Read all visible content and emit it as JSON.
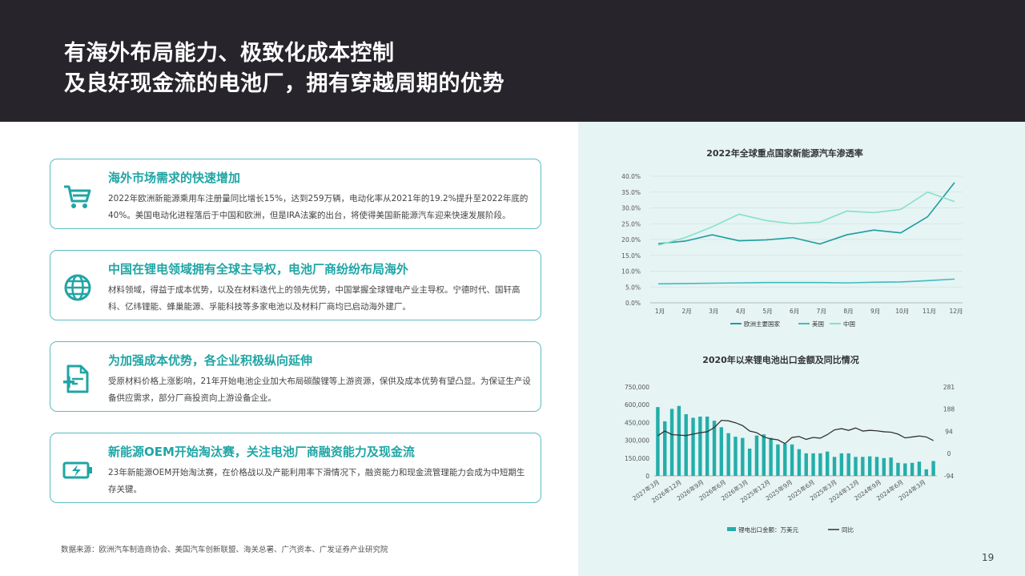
{
  "header": {
    "title_line1": "有海外布局能力、极致化成本控制",
    "title_line2": "及良好现金流的电池厂，拥有穿越周期的优势"
  },
  "cards": [
    {
      "icon": "shopping-cart-icon",
      "title": "海外市场需求的快速增加",
      "body": "2022年欧洲新能源乘用车注册量同比增长15%，达到259万辆，电动化率从2021年的19.2%提升至2022年底的40%。美国电动化进程落后于中国和欧洲，但是IRA法案的出台，将使得美国新能源汽车迎来快速发展阶段。"
    },
    {
      "icon": "globe-icon",
      "title": "中国在锂电领域拥有全球主导权，电池厂商纷纷布局海外",
      "body": "材料领域，得益于成本优势，以及在材料迭代上的领先优势，中国掌握全球锂电产业主导权。宁德时代、国轩高科、亿纬锂能、蜂巢能源、孚能科技等多家电池以及材料厂商均已启动海外建厂。"
    },
    {
      "icon": "document-add-icon",
      "title": "为加强成本优势，各企业积极纵向延伸",
      "body": "受原材料价格上涨影响，21年开始电池企业加大布局碳酸锂等上游资源，保供及成本优势有望凸显。为保证生产设备供应需求，部分厂商投资向上游设备企业。"
    },
    {
      "icon": "battery-charging-icon",
      "title": "新能源OEM开始淘汰赛，关注电池厂商融资能力及现金流",
      "body": "23年新能源OEM开始淘汰赛，在价格战以及产能利用率下滑情况下，融资能力和现金流管理能力会成为中短期生存关键。"
    }
  ],
  "footer": {
    "source": "数据来源：欧洲汽车制造商协会、美国汽车创新联盟、海关总署、广汽资本、广发证券产业研究院",
    "page_number": "19"
  },
  "colors": {
    "header_bg": "#27252b",
    "accent": "#20a5a5",
    "europe_line": "#1d9d9f",
    "usa_line": "#3fbcc0",
    "china_line": "#86e0cb",
    "bar": "#24aeaa",
    "yoy_line": "#333333"
  },
  "chart_data": [
    {
      "type": "line",
      "title": "2022年全球重点国家新能源汽车渗透率",
      "categories": [
        "1月",
        "2月",
        "3月",
        "4月",
        "5月",
        "6月",
        "7月",
        "8月",
        "9月",
        "10月",
        "11月",
        "12月"
      ],
      "y_ticks": [
        "0.0%",
        "5.0%",
        "10.0%",
        "15.0%",
        "20.0%",
        "25.0%",
        "30.0%",
        "35.0%",
        "40.0%"
      ],
      "ylim": [
        0,
        40
      ],
      "legend_position": "bottom",
      "grid": true,
      "series": [
        {
          "name": "欧洲主要国家",
          "values": [
            18.7,
            19.5,
            21.5,
            19.6,
            19.9,
            20.6,
            18.6,
            21.5,
            23.0,
            22.1,
            27.2,
            38.0
          ]
        },
        {
          "name": "美国",
          "values": [
            6.0,
            6.1,
            6.2,
            6.3,
            6.4,
            6.4,
            6.4,
            6.3,
            6.5,
            6.6,
            7.0,
            7.5
          ]
        },
        {
          "name": "中国",
          "values": [
            18.2,
            20.6,
            24.0,
            28.0,
            26.0,
            25.0,
            25.5,
            29.0,
            28.5,
            29.5,
            35.0,
            32.0
          ]
        }
      ]
    },
    {
      "type": "bar",
      "title": "2020年以来锂电池出口金额及同比情况",
      "x_tick_labels": [
        "2027年3月",
        "2026年12月",
        "2026年9月",
        "2026年6月",
        "2026年3月",
        "2025年12月",
        "2025年9月",
        "2025年6月",
        "2025年3月",
        "2024年12月",
        "2024年9月",
        "2024年6月",
        "2024年3月"
      ],
      "y_left_ticks": [
        "0",
        "150,000",
        "300,000",
        "450,000",
        "600,000",
        "750,000"
      ],
      "ylim_left": [
        0,
        750000
      ],
      "y_right_ticks": [
        "-94",
        "0",
        "94",
        "188",
        "281"
      ],
      "ylim_right": [
        -94,
        281
      ],
      "legend_position": "bottom",
      "grid": false,
      "series": [
        {
          "name": "锂电出口金额：万美元",
          "type": "bar",
          "values": [
            580000,
            460000,
            565000,
            590000,
            520000,
            490000,
            500000,
            500000,
            465000,
            410000,
            360000,
            330000,
            320000,
            230000,
            340000,
            350000,
            320000,
            265000,
            270000,
            265000,
            225000,
            190000,
            190000,
            190000,
            205000,
            160000,
            190000,
            190000,
            160000,
            160000,
            165000,
            160000,
            150000,
            155000,
            110000,
            105000,
            110000,
            120000,
            55000,
            125000
          ]
        },
        {
          "name": "同比",
          "type": "line",
          "values": [
            75,
            95,
            80,
            78,
            76,
            82,
            88,
            92,
            110,
            140,
            138,
            130,
            118,
            95,
            88,
            70,
            62,
            58,
            42,
            68,
            72,
            60,
            68,
            65,
            80,
            100,
            105,
            98,
            108,
            95,
            98,
            96,
            92,
            90,
            82,
            66,
            70,
            74,
            70,
            55
          ]
        }
      ]
    }
  ]
}
